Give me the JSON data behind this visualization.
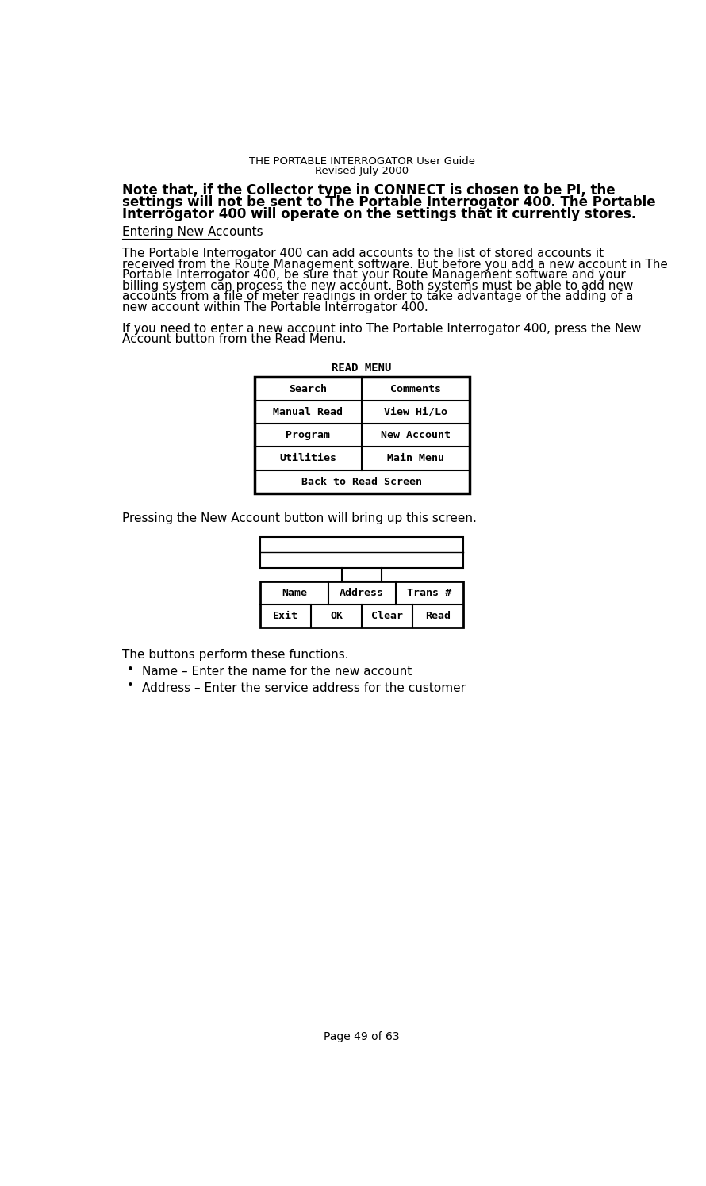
{
  "header_line1": "THE PORTABLE INTERROGATOR User Guide",
  "header_line2": "Revised July 2000",
  "bold_paragraph": "Note that, if the Collector type in CONNECT is chosen to be PI, the settings will not be sent to The Portable Interrogator 400.  The Portable Interrogator 400 will operate on the settings that it currently stores.",
  "section_heading": "Entering New Accounts",
  "para1": "The Portable Interrogator 400 can add accounts to the list of stored accounts it received from the Route Management software.  But before you add a new account in The Portable Interrogator 400, be sure that your Route Management software and your billing system can process the new account.  Both systems must be able to add new accounts from a file of meter readings in order to take advantage of the adding of a new account within The Portable Interrogator 400.",
  "para2": "If you need to enter a new account into The Portable Interrogator 400, press the New Account button from the Read Menu.",
  "read_menu_title": "READ MENU",
  "read_menu_buttons": [
    [
      "Search",
      "Comments"
    ],
    [
      "Manual Read",
      "View Hi/Lo"
    ],
    [
      "Program",
      "New Account"
    ],
    [
      "Utilities",
      "Main Menu"
    ],
    [
      "Back to Read Screen"
    ]
  ],
  "para3": "Pressing the New Account button will bring up this screen.",
  "new_account_row1": [
    "Name",
    "Address",
    "Trans #"
  ],
  "new_account_row2": [
    "Exit",
    "OK",
    "Clear",
    "Read"
  ],
  "bullets": [
    "Name – Enter the name for the new account",
    "Address – Enter the service address for the customer"
  ],
  "footer": "Page 49 of 63",
  "bg_color": "#ffffff",
  "text_color": "#000000"
}
